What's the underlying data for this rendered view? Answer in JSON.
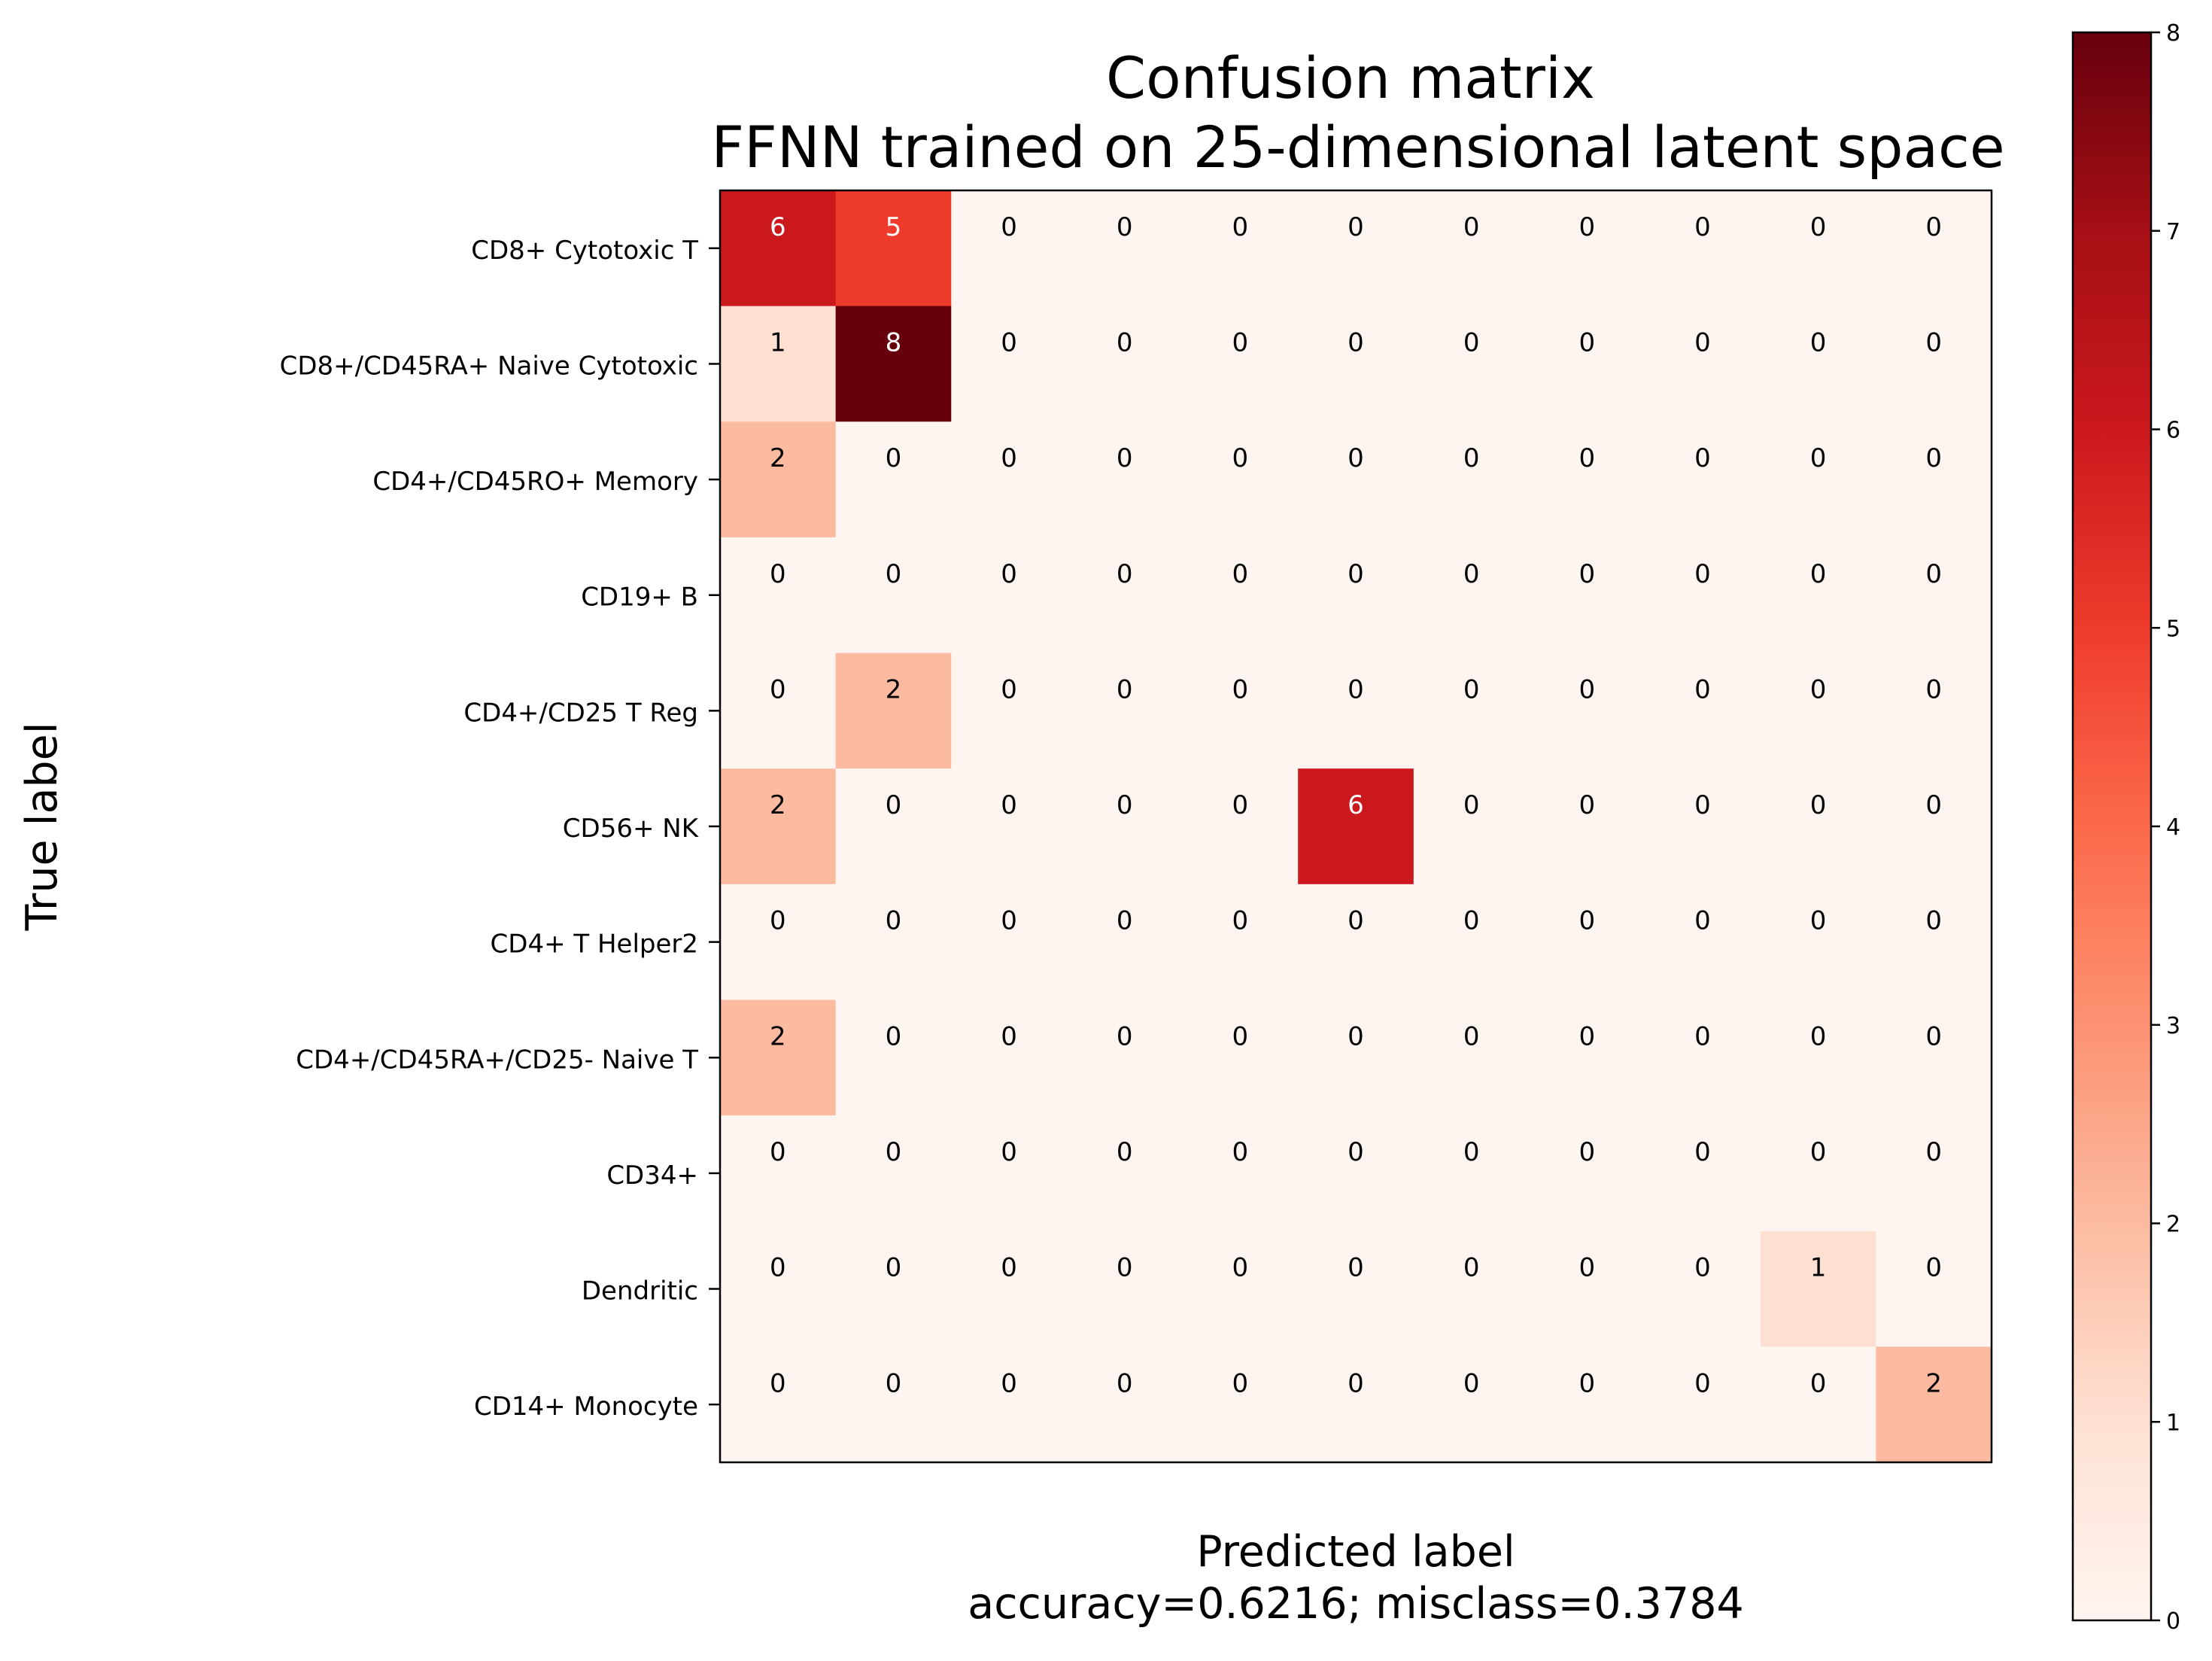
{
  "chart_data": {
    "type": "heatmap",
    "title_lines": [
      "Confusion matrix",
      "FFNN trained on 25-dimensional latent space"
    ],
    "xlabel_lines": [
      "Predicted label",
      "accuracy=0.6216; misclass=0.3784"
    ],
    "ylabel": "True label",
    "row_labels": [
      "CD8+ Cytotoxic T",
      "CD8+/CD45RA+ Naive Cytotoxic",
      "CD4+/CD45RO+ Memory",
      "CD19+ B",
      "CD4+/CD25 T Reg",
      "CD56+ NK",
      "CD4+ T Helper2",
      "CD4+/CD45RA+/CD25- Naive T",
      "CD34+",
      "Dendritic",
      "CD14+ Monocyte"
    ],
    "matrix": [
      [
        6,
        5,
        0,
        0,
        0,
        0,
        0,
        0,
        0,
        0,
        0
      ],
      [
        1,
        8,
        0,
        0,
        0,
        0,
        0,
        0,
        0,
        0,
        0
      ],
      [
        2,
        0,
        0,
        0,
        0,
        0,
        0,
        0,
        0,
        0,
        0
      ],
      [
        0,
        0,
        0,
        0,
        0,
        0,
        0,
        0,
        0,
        0,
        0
      ],
      [
        0,
        2,
        0,
        0,
        0,
        0,
        0,
        0,
        0,
        0,
        0
      ],
      [
        2,
        0,
        0,
        0,
        0,
        6,
        0,
        0,
        0,
        0,
        0
      ],
      [
        0,
        0,
        0,
        0,
        0,
        0,
        0,
        0,
        0,
        0,
        0
      ],
      [
        2,
        0,
        0,
        0,
        0,
        0,
        0,
        0,
        0,
        0,
        0
      ],
      [
        0,
        0,
        0,
        0,
        0,
        0,
        0,
        0,
        0,
        0,
        0
      ],
      [
        0,
        0,
        0,
        0,
        0,
        0,
        0,
        0,
        0,
        1,
        0
      ],
      [
        0,
        0,
        0,
        0,
        0,
        0,
        0,
        0,
        0,
        0,
        2
      ]
    ],
    "colorbar": {
      "range": [
        0,
        8
      ],
      "ticks": [
        "0",
        "1",
        "2",
        "3",
        "4",
        "5",
        "6",
        "7",
        "8"
      ],
      "colormap": "Reds"
    },
    "grid": false,
    "legend": "none"
  }
}
